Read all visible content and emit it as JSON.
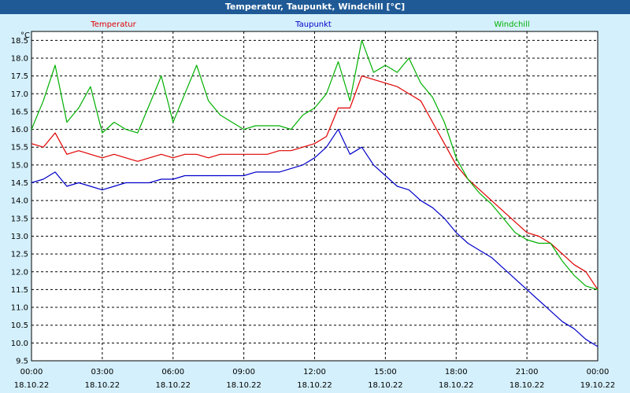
{
  "window": {
    "title": "Temperatur, Taupunkt, Windchill [°C]"
  },
  "colors": {
    "background": "#d4f0fc",
    "plot_background": "#ffffff",
    "title_bar": "#1f5a96"
  },
  "chart_data": {
    "type": "line",
    "title": "Temperatur, Taupunkt, Windchill [°C]",
    "ylabel": "°C",
    "xlabel": "",
    "ylim": [
      9.5,
      18.75
    ],
    "xlim": [
      "2022-10-18 00:00",
      "2022-10-19 00:00"
    ],
    "grid": true,
    "legend": "top",
    "y_ticks": [
      "9.5",
      "10.0",
      "10.5",
      "11.0",
      "11.5",
      "12.0",
      "12.5",
      "13.0",
      "13.5",
      "14.0",
      "14.5",
      "15.0",
      "15.5",
      "16.0",
      "16.5",
      "17.0",
      "17.5",
      "18.0",
      "18.5"
    ],
    "x_ticks": [
      {
        "time": "00:00",
        "date": "18.10.22"
      },
      {
        "time": "03:00",
        "date": "18.10.22"
      },
      {
        "time": "06:00",
        "date": "18.10.22"
      },
      {
        "time": "09:00",
        "date": "18.10.22"
      },
      {
        "time": "12:00",
        "date": "18.10.22"
      },
      {
        "time": "15:00",
        "date": "18.10.22"
      },
      {
        "time": "18:00",
        "date": "18.10.22"
      },
      {
        "time": "21:00",
        "date": "18.10.22"
      },
      {
        "time": "00:00",
        "date": "19.10.22"
      }
    ],
    "x": [
      "00:00",
      "00:30",
      "01:00",
      "01:30",
      "02:00",
      "02:30",
      "03:00",
      "03:30",
      "04:00",
      "04:30",
      "05:00",
      "05:30",
      "06:00",
      "06:30",
      "07:00",
      "07:30",
      "08:00",
      "08:30",
      "09:00",
      "09:30",
      "10:00",
      "10:30",
      "11:00",
      "11:30",
      "12:00",
      "12:30",
      "13:00",
      "13:30",
      "14:00",
      "14:30",
      "15:00",
      "15:30",
      "16:00",
      "16:30",
      "17:00",
      "17:30",
      "18:00",
      "18:30",
      "19:00",
      "19:30",
      "20:00",
      "20:30",
      "21:00",
      "21:30",
      "22:00",
      "22:30",
      "23:00",
      "23:30",
      "24:00"
    ],
    "series": [
      {
        "name": "Temperatur",
        "color": "#e00000",
        "values": [
          15.6,
          15.5,
          15.9,
          15.3,
          15.4,
          15.3,
          15.2,
          15.3,
          15.2,
          15.1,
          15.2,
          15.3,
          15.2,
          15.3,
          15.3,
          15.2,
          15.3,
          15.3,
          15.3,
          15.3,
          15.3,
          15.4,
          15.4,
          15.5,
          15.6,
          15.8,
          16.6,
          16.6,
          17.5,
          17.4,
          17.3,
          17.2,
          17.0,
          16.8,
          16.2,
          15.6,
          15.0,
          14.6,
          14.3,
          14.0,
          13.7,
          13.4,
          13.1,
          13.0,
          12.8,
          12.5,
          12.2,
          12.0,
          11.5
        ]
      },
      {
        "name": "Taupunkt",
        "color": "#0000c8",
        "values": [
          14.5,
          14.6,
          14.8,
          14.4,
          14.5,
          14.4,
          14.3,
          14.4,
          14.5,
          14.5,
          14.5,
          14.6,
          14.6,
          14.7,
          14.7,
          14.7,
          14.7,
          14.7,
          14.7,
          14.8,
          14.8,
          14.8,
          14.9,
          15.0,
          15.2,
          15.5,
          16.0,
          15.3,
          15.5,
          15.0,
          14.7,
          14.4,
          14.3,
          14.0,
          13.8,
          13.5,
          13.1,
          12.8,
          12.6,
          12.4,
          12.1,
          11.8,
          11.5,
          11.2,
          10.9,
          10.6,
          10.4,
          10.1,
          9.9
        ]
      },
      {
        "name": "Windchill",
        "color": "#00b000",
        "values": [
          16.0,
          16.8,
          17.8,
          16.2,
          16.6,
          17.2,
          15.9,
          16.2,
          16.0,
          15.9,
          16.7,
          17.5,
          16.2,
          17.0,
          17.8,
          16.8,
          16.4,
          16.2,
          16.0,
          16.1,
          16.1,
          16.1,
          16.0,
          16.4,
          16.6,
          17.0,
          17.9,
          16.8,
          18.5,
          17.6,
          17.8,
          17.6,
          18.0,
          17.3,
          16.9,
          16.2,
          15.2,
          14.6,
          14.2,
          13.9,
          13.5,
          13.1,
          12.9,
          12.8,
          12.8,
          12.3,
          11.9,
          11.6,
          11.5
        ]
      }
    ]
  }
}
